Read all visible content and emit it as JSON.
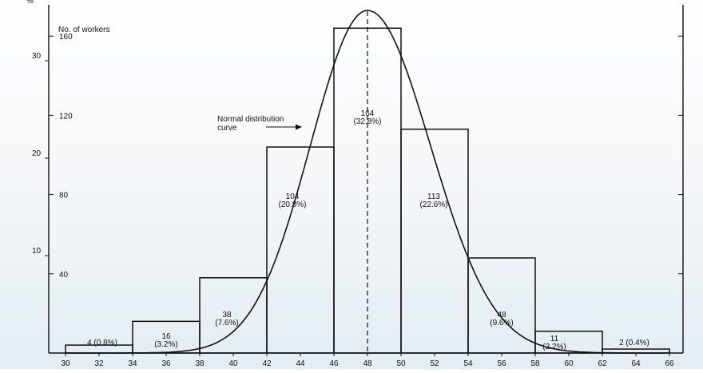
{
  "chart_data": {
    "type": "bar",
    "histogram": true,
    "x_ticks": [
      30,
      32,
      34,
      36,
      38,
      40,
      42,
      44,
      46,
      48,
      50,
      52,
      54,
      56,
      58,
      60,
      62,
      64,
      66
    ],
    "x_range": [
      30,
      66
    ],
    "bins": [
      {
        "start": 30,
        "end": 34,
        "count": 4,
        "label_line1": "4 (0.8%)",
        "label_line2": ""
      },
      {
        "start": 34,
        "end": 38,
        "count": 16,
        "label_line1": "16",
        "label_line2": "(3.2%)"
      },
      {
        "start": 38,
        "end": 42,
        "count": 38,
        "label_line1": "38",
        "label_line2": "(7.6%)"
      },
      {
        "start": 42,
        "end": 46,
        "count": 104,
        "label_line1": "104",
        "label_line2": "(20.8%)"
      },
      {
        "start": 46,
        "end": 50,
        "count": 164,
        "label_line1": "164",
        "label_line2": "(32.8%)"
      },
      {
        "start": 50,
        "end": 54,
        "count": 113,
        "label_line1": "113",
        "label_line2": "(22.6%)"
      },
      {
        "start": 54,
        "end": 58,
        "count": 48,
        "label_line1": "48",
        "label_line2": "(9.6%)"
      },
      {
        "start": 58,
        "end": 62,
        "count": 11,
        "label_line1": "11",
        "label_line2": "(2.2%)"
      },
      {
        "start": 62,
        "end": 66,
        "count": 2,
        "label_line1": "2 (0.4%)",
        "label_line2": ""
      }
    ],
    "y_left_percent_ticks": [
      10,
      20,
      30
    ],
    "y_left_percent_label": "%",
    "y_workers_ticks": [
      40,
      80,
      120,
      160
    ],
    "y_workers_label": "No. of workers",
    "y_range_workers": [
      0,
      165
    ],
    "curve_label_line1": "Normal distribution",
    "curve_label_line2": "curve",
    "curve": {
      "mean": 48,
      "peak_count": 173,
      "sigma_left": 3.4,
      "sigma_right": 3.75
    },
    "mean_line_x": 48,
    "colors": {
      "ink": "#111111",
      "background": "#ffffff"
    }
  }
}
